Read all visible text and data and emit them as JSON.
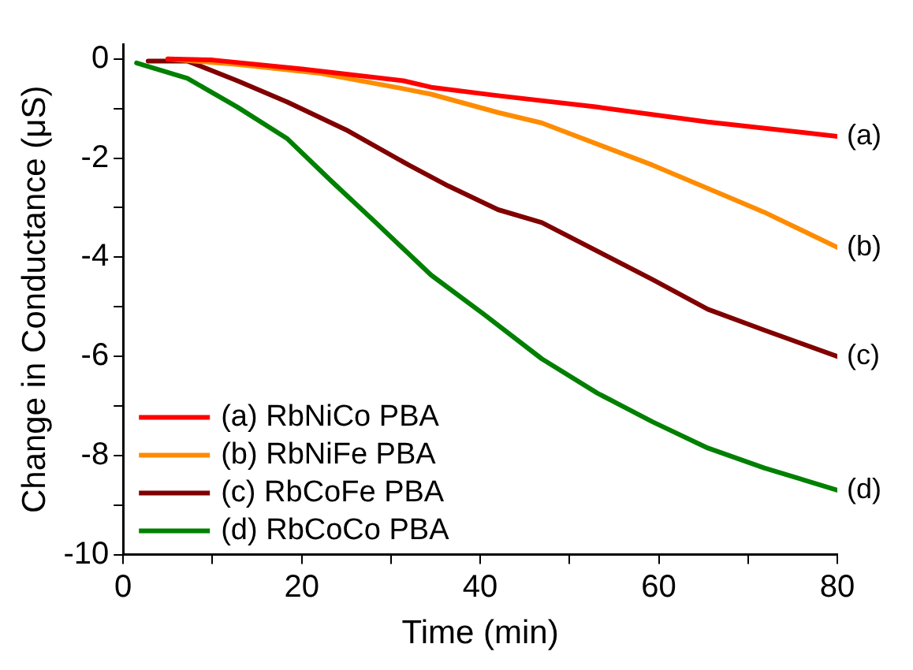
{
  "chart_data": {
    "type": "line",
    "xlabel": "Time (min)",
    "ylabel": "Change in Conductance (μS)",
    "xlim": [
      0,
      80
    ],
    "ylim": [
      -10,
      0.3
    ],
    "xticks": [
      0,
      {
        "value": 10,
        "label": null
      },
      20,
      {
        "value": 30,
        "label": null
      },
      40,
      {
        "value": 50,
        "label": null
      },
      60,
      {
        "value": 70,
        "label": null
      },
      80
    ],
    "yticks": [
      -10,
      {
        "value": -9,
        "label": null
      },
      -8,
      {
        "value": -7,
        "label": null
      },
      -6,
      {
        "value": -5,
        "label": null
      },
      -4,
      {
        "value": -3,
        "label": null
      },
      -2,
      {
        "value": -1,
        "label": null
      },
      0
    ],
    "grid": false,
    "legend": "bottom left",
    "marker": "none",
    "line_style": "solid",
    "series": [
      {
        "name": "(a) RbNiCo PBA",
        "color": "#ff0000",
        "x": [
          5,
          10,
          20,
          31.4,
          34.5,
          42,
          53.1,
          65.5,
          80
        ],
        "values": [
          0,
          -0.02,
          -0.2,
          -0.44,
          -0.57,
          -0.74,
          -0.97,
          -1.27,
          -1.56
        ]
      },
      {
        "name": "(b) RbNiFe PBA",
        "color": "#ff8c00",
        "x": [
          5,
          12.8,
          22.1,
          31.4,
          34.5,
          42,
          46.9,
          59.3,
          71.8,
          80
        ],
        "values": [
          0,
          -0.11,
          -0.29,
          -0.6,
          -0.71,
          -1.08,
          -1.29,
          -2.14,
          -3.09,
          -3.8
        ]
      },
      {
        "name": "(c) RbCoFe PBA",
        "color": "#800000",
        "x": [
          2.8,
          7.2,
          12.8,
          18.4,
          25.2,
          32,
          36.4,
          42,
          46.9,
          59.3,
          65.5,
          71.8,
          80
        ],
        "values": [
          -0.04,
          -0.04,
          -0.44,
          -0.87,
          -1.45,
          -2.14,
          -2.56,
          -3.04,
          -3.3,
          -4.45,
          -5.05,
          -5.47,
          -6
        ]
      },
      {
        "name": "(d) RbCoCo PBA",
        "color": "#008000",
        "x": [
          1.5,
          7.2,
          12.8,
          18.4,
          23.3,
          28.3,
          34.5,
          40.4,
          46.9,
          53.1,
          59.3,
          65.5,
          71.8,
          80
        ],
        "values": [
          -0.08,
          -0.39,
          -0.97,
          -1.61,
          -2.46,
          -3.3,
          -4.36,
          -5.15,
          -6.05,
          -6.74,
          -7.32,
          -7.85,
          -8.25,
          -8.7
        ]
      }
    ],
    "annotations": [
      "(a)",
      "(b)",
      "(c)",
      "(d)"
    ]
  }
}
